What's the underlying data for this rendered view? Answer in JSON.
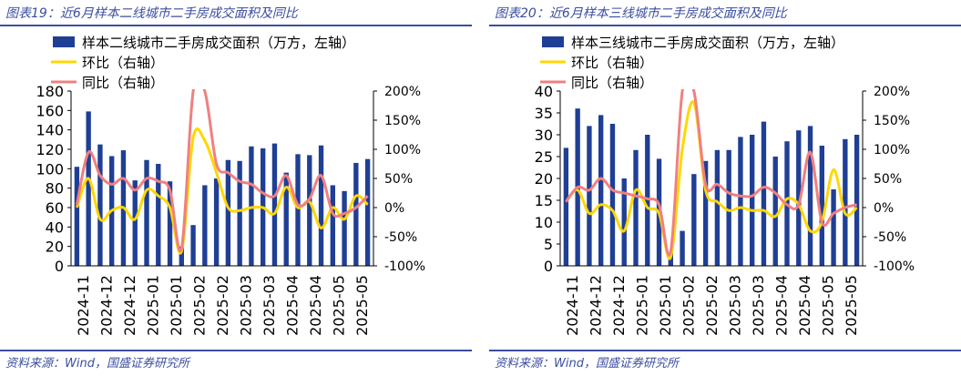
{
  "charts": [
    {
      "title": "图表19：近6月样本二线城市二手房成交面积及同比",
      "source": "资料来源：Wind，国盛证券研究所"
    },
    {
      "title": "图表20：近6月样本三线城市二手房成交面积及同比",
      "source": "资料来源：Wind，国盛证券研究所"
    }
  ],
  "chart_data": [
    {
      "type": "bar",
      "title": "图表19：近6月样本二线城市二手房成交面积及同比",
      "x_tick_labels": [
        "2024-11",
        "2024-12",
        "2024-12",
        "2025-01",
        "2025-01",
        "2025-02",
        "2025-02",
        "2025-03",
        "2025-03",
        "2025-04",
        "2025-04",
        "2025-05",
        "2025-05"
      ],
      "y_left": {
        "min": 0,
        "max": 180,
        "ticks": [
          0,
          20,
          40,
          60,
          80,
          100,
          120,
          140,
          160,
          180
        ]
      },
      "y_right": {
        "min": -100,
        "max": 200,
        "ticks": [
          -100,
          -50,
          0,
          50,
          100,
          150,
          200
        ],
        "tick_labels": [
          "-100%",
          "-50%",
          "0%",
          "50%",
          "100%",
          "150%",
          "200%"
        ]
      },
      "legend_placement": "top-left",
      "grid": false,
      "series": [
        {
          "name": "样本二线城市二手房成交面积（万方，左轴）",
          "type": "bar",
          "axis": "left",
          "color": "#1f3f95",
          "values": [
            102,
            159,
            125,
            113,
            119,
            88,
            109,
            105,
            87,
            20,
            42,
            83,
            90,
            109,
            108,
            123,
            121,
            126,
            96,
            115,
            114,
            124,
            83,
            77,
            106,
            110
          ]
        },
        {
          "name": "环比（右轴）",
          "type": "line",
          "axis": "right",
          "color": "#ffd700",
          "values": [
            0,
            50,
            -20,
            -5,
            0,
            -20,
            30,
            20,
            0,
            -75,
            120,
            115,
            60,
            0,
            -5,
            0,
            0,
            -10,
            35,
            0,
            10,
            -35,
            0,
            -20,
            20,
            5
          ]
        },
        {
          "name": "同比（右轴）",
          "type": "line",
          "axis": "right",
          "color": "#f08080",
          "values": [
            5,
            95,
            55,
            40,
            50,
            30,
            50,
            45,
            30,
            -70,
            200,
            200,
            75,
            60,
            45,
            40,
            25,
            20,
            55,
            5,
            15,
            55,
            -10,
            -10,
            0,
            20
          ]
        }
      ]
    },
    {
      "type": "bar",
      "title": "图表20：近6月样本三线城市二手房成交面积及同比",
      "x_tick_labels": [
        "2024-11",
        "2024-12",
        "2024-12",
        "2025-01",
        "2025-01",
        "2025-02",
        "2025-02",
        "2025-03",
        "2025-03",
        "2025-04",
        "2025-04",
        "2025-05",
        "2025-05"
      ],
      "y_left": {
        "min": 0,
        "max": 40,
        "ticks": [
          0,
          5,
          10,
          15,
          20,
          25,
          30,
          35,
          40
        ]
      },
      "y_right": {
        "min": -100,
        "max": 200,
        "ticks": [
          -100,
          -50,
          0,
          50,
          100,
          150,
          200
        ],
        "tick_labels": [
          "-100%",
          "-50%",
          "0%",
          "50%",
          "100%",
          "150%",
          "200%"
        ]
      },
      "legend_placement": "top-left",
      "grid": false,
      "series": [
        {
          "name": "样本三线城市二手房成交面积（万方，左轴）",
          "type": "bar",
          "axis": "left",
          "color": "#1f3f95",
          "values": [
            27,
            36,
            32,
            34.5,
            32.5,
            20,
            26.5,
            30,
            24.5,
            3,
            8,
            21,
            24,
            26.5,
            26.5,
            29.5,
            30,
            33,
            25,
            28.5,
            31,
            32,
            27.5,
            17.5,
            29,
            30
          ]
        },
        {
          "name": "环比（右轴）",
          "type": "line",
          "axis": "right",
          "color": "#ffd700",
          "values": [
            10,
            30,
            -10,
            5,
            -5,
            -40,
            30,
            0,
            -10,
            -85,
            100,
            180,
            30,
            10,
            -5,
            0,
            -5,
            -5,
            -15,
            15,
            5,
            -40,
            -25,
            65,
            -10,
            0
          ]
        },
        {
          "name": "同比（右轴）",
          "type": "line",
          "axis": "right",
          "color": "#f08080",
          "values": [
            10,
            35,
            30,
            50,
            30,
            25,
            20,
            15,
            5,
            -75,
            200,
            200,
            40,
            40,
            25,
            20,
            20,
            35,
            25,
            5,
            5,
            95,
            -25,
            -10,
            0,
            5
          ]
        }
      ]
    }
  ]
}
